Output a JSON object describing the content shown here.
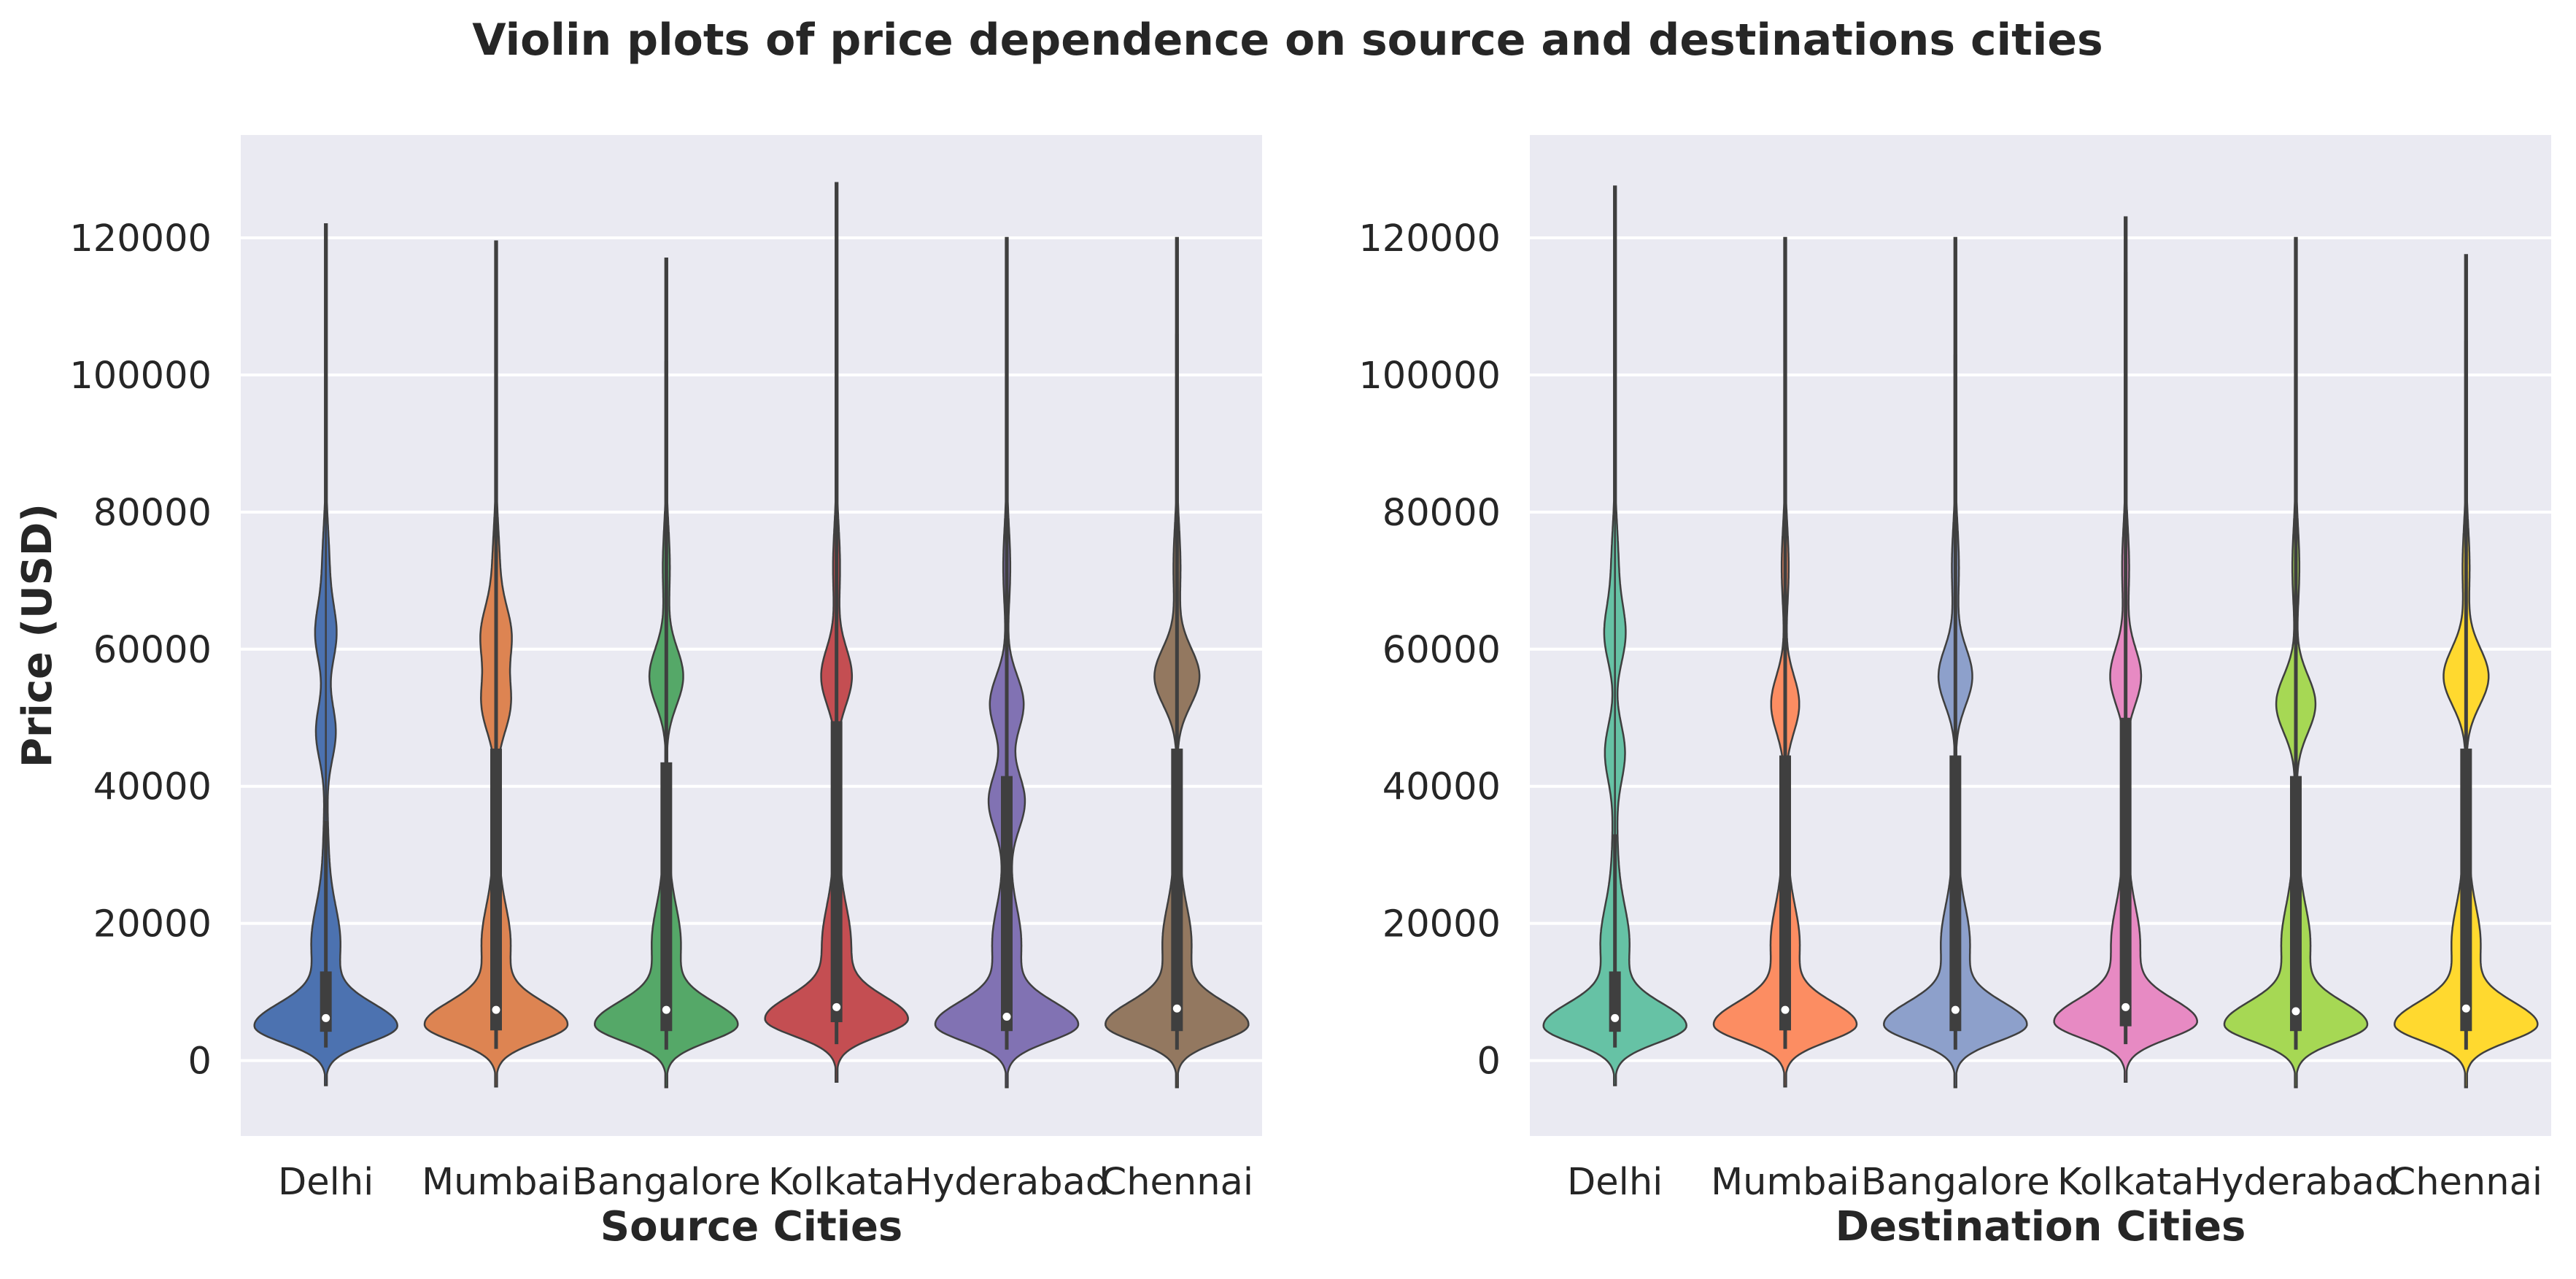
{
  "figure": {
    "suptitle": "Violin plots of price dependence on source and destinations cities"
  },
  "chart_data": [
    {
      "type": "violin",
      "xlabel": "Source Cities",
      "ylabel": "Price (USD)",
      "ylim": [
        -11000,
        135000
      ],
      "yticks": [
        0,
        20000,
        40000,
        60000,
        80000,
        100000,
        120000
      ],
      "grid": true,
      "background": "#eaeaf2",
      "categories": [
        "Delhi",
        "Mumbai",
        "Bangalore",
        "Kolkata",
        "Hyderabad",
        "Chennai"
      ],
      "colors": [
        "#4c72b0",
        "#dd8452",
        "#55a868",
        "#c44e52",
        "#8172b3",
        "#937860"
      ],
      "series": [
        {
          "min": 1900,
          "max": 122000,
          "q1": 4200,
          "median": 6200,
          "q3": 13000,
          "whisker_hi": 35000,
          "lower_mode": 5000,
          "upper_modes": [
            48000,
            62000
          ],
          "upper_density": 0.14
        },
        {
          "min": 1700,
          "max": 119500,
          "q1": 4400,
          "median": 7400,
          "q3": 45500,
          "whisker_hi": 107000,
          "lower_mode": 5200,
          "upper_modes": [
            52000,
            62000
          ],
          "upper_density": 0.2
        },
        {
          "min": 1600,
          "max": 117000,
          "q1": 4300,
          "median": 7400,
          "q3": 43500,
          "whisker_hi": 102000,
          "lower_mode": 5200,
          "upper_modes": [
            56000
          ],
          "upper_density": 0.24
        },
        {
          "min": 2400,
          "max": 128000,
          "q1": 5600,
          "median": 7800,
          "q3": 49500,
          "whisker_hi": 111000,
          "lower_mode": 6000,
          "upper_modes": [
            56000
          ],
          "upper_density": 0.22
        },
        {
          "min": 1600,
          "max": 120000,
          "q1": 4300,
          "median": 6400,
          "q3": 41500,
          "whisker_hi": 96000,
          "lower_mode": 5200,
          "upper_modes": [
            38000,
            52000
          ],
          "upper_density": 0.24
        },
        {
          "min": 1600,
          "max": 120000,
          "q1": 4300,
          "median": 7600,
          "q3": 45500,
          "whisker_hi": 106000,
          "lower_mode": 5200,
          "upper_modes": [
            56000
          ],
          "upper_density": 0.32
        }
      ]
    },
    {
      "type": "violin",
      "xlabel": "Destination Cities",
      "ylabel": "",
      "ylim": [
        -11000,
        135000
      ],
      "yticks": [
        0,
        20000,
        40000,
        60000,
        80000,
        100000,
        120000
      ],
      "grid": true,
      "background": "#eaeaf2",
      "categories": [
        "Delhi",
        "Mumbai",
        "Bangalore",
        "Kolkata",
        "Hyderabad",
        "Chennai"
      ],
      "colors": [
        "#66c2a5",
        "#fc8d62",
        "#8da0cb",
        "#e78ac3",
        "#a6d854",
        "#ffd92f"
      ],
      "series": [
        {
          "min": 1900,
          "max": 127500,
          "q1": 4200,
          "median": 6200,
          "q3": 13000,
          "whisker_hi": 33000,
          "lower_mode": 5000,
          "upper_modes": [
            45000,
            62000
          ],
          "upper_density": 0.14
        },
        {
          "min": 1700,
          "max": 120000,
          "q1": 4400,
          "median": 7400,
          "q3": 44500,
          "whisker_hi": 102000,
          "lower_mode": 5200,
          "upper_modes": [
            52000
          ],
          "upper_density": 0.2
        },
        {
          "min": 1600,
          "max": 120000,
          "q1": 4300,
          "median": 7400,
          "q3": 44500,
          "whisker_hi": 103000,
          "lower_mode": 5200,
          "upper_modes": [
            56000
          ],
          "upper_density": 0.24
        },
        {
          "min": 2400,
          "max": 123000,
          "q1": 5000,
          "median": 7800,
          "q3": 50000,
          "whisker_hi": 115000,
          "lower_mode": 5600,
          "upper_modes": [
            56000
          ],
          "upper_density": 0.22
        },
        {
          "min": 1600,
          "max": 120000,
          "q1": 4300,
          "median": 7200,
          "q3": 41500,
          "whisker_hi": 96000,
          "lower_mode": 5200,
          "upper_modes": [
            52000
          ],
          "upper_density": 0.28
        },
        {
          "min": 1600,
          "max": 117500,
          "q1": 4300,
          "median": 7600,
          "q3": 45500,
          "whisker_hi": 105000,
          "lower_mode": 5200,
          "upper_modes": [
            56000
          ],
          "upper_density": 0.32
        }
      ]
    }
  ]
}
